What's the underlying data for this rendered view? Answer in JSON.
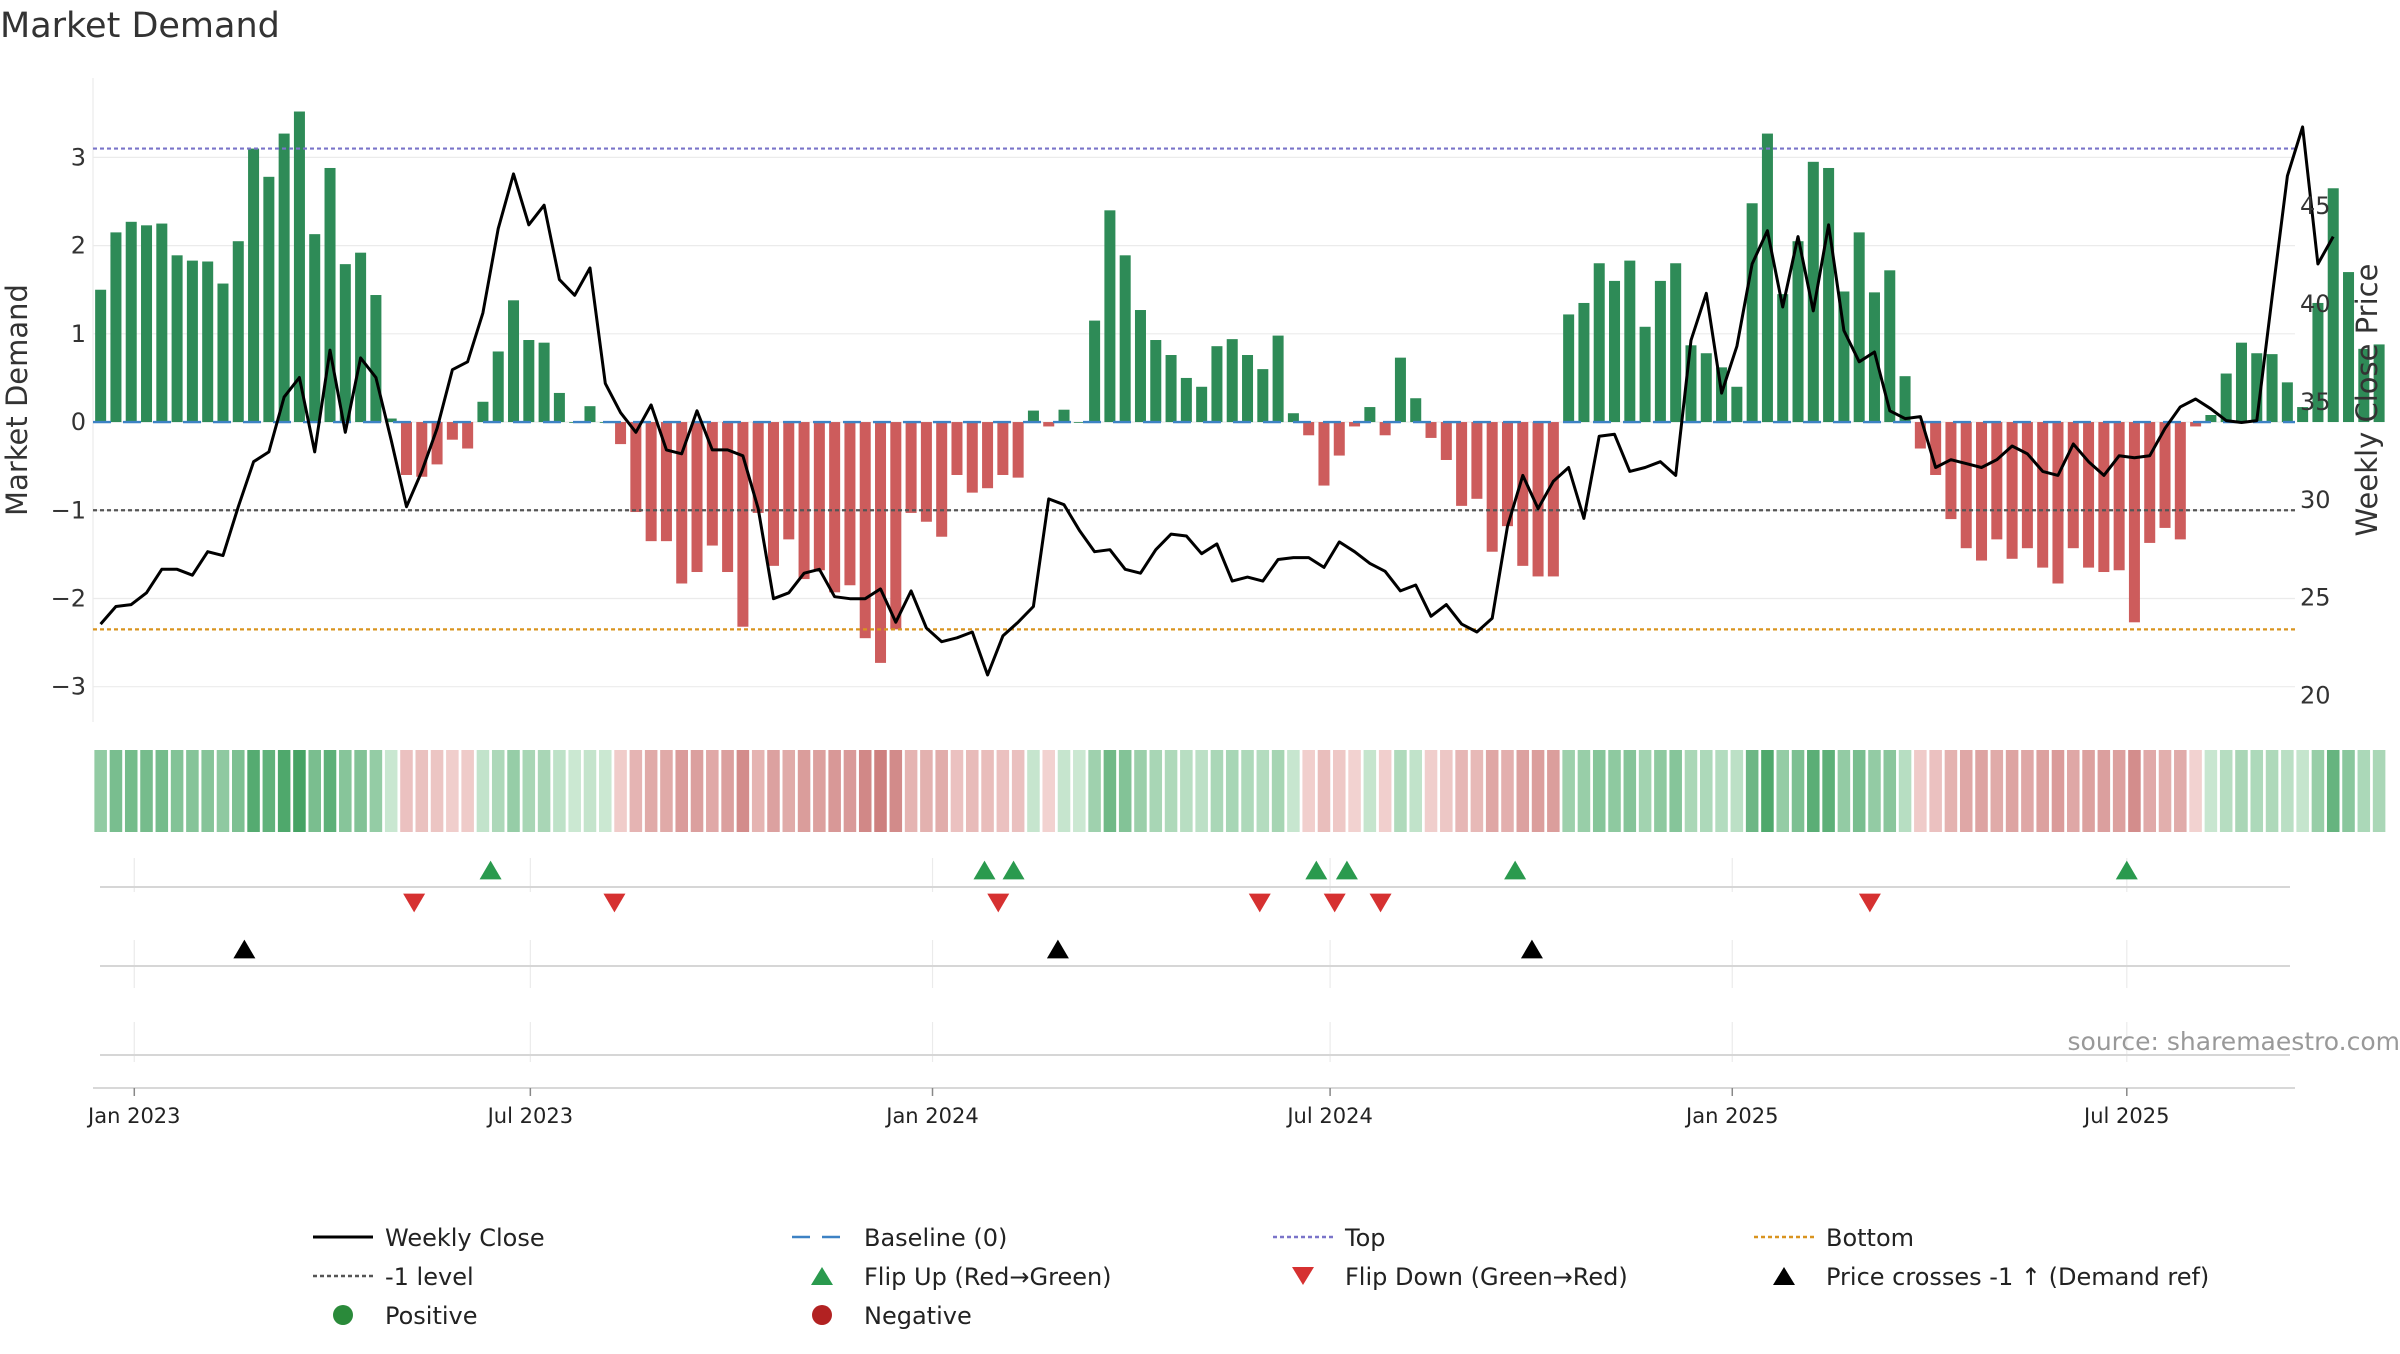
{
  "chart_data": {
    "type": "bar",
    "title": "Market Demand",
    "ylabel_left": "Market Demand",
    "ylabel_right": "Weekly Close Price",
    "ylim_left": [
      -3.4,
      3.9
    ],
    "ylim_right": [
      18.6,
      51.5
    ],
    "yticks_left": [
      {
        "v": 3,
        "label": "3"
      },
      {
        "v": 2,
        "label": "2"
      },
      {
        "v": 1,
        "label": "1"
      },
      {
        "v": 0,
        "label": "0"
      },
      {
        "v": -1,
        "label": "−1"
      },
      {
        "v": -2,
        "label": "−2"
      },
      {
        "v": -3,
        "label": "−3"
      }
    ],
    "yticks_right": [
      {
        "v": 45,
        "label": "45"
      },
      {
        "v": 40,
        "label": "40"
      },
      {
        "v": 35,
        "label": "35"
      },
      {
        "v": 30,
        "label": "30"
      },
      {
        "v": 25,
        "label": "25"
      },
      {
        "v": 20,
        "label": "20"
      }
    ],
    "x_start": "2022-12-19",
    "x_weeks": 144,
    "xticks": [
      {
        "week": 2.2,
        "label": "Jan 2023"
      },
      {
        "week": 28.1,
        "label": "Jul 2023"
      },
      {
        "week": 54.4,
        "label": "Jan 2024"
      },
      {
        "week": 80.4,
        "label": "Jul 2024"
      },
      {
        "week": 106.7,
        "label": "Jan 2025"
      },
      {
        "week": 132.5,
        "label": "Jul 2025"
      }
    ],
    "reference_lines": {
      "top": 3.1,
      "bottom": -2.35,
      "minus_one": -1,
      "baseline": 0
    },
    "market_demand": [
      1.5,
      2.15,
      2.27,
      2.23,
      2.25,
      1.89,
      1.83,
      1.82,
      1.57,
      2.05,
      3.1,
      2.78,
      3.27,
      3.52,
      2.13,
      2.88,
      1.79,
      1.92,
      1.44,
      0.04,
      -0.6,
      -0.62,
      -0.48,
      -0.2,
      -0.3,
      0.23,
      0.8,
      1.38,
      0.93,
      0.9,
      0.33,
      0,
      0.18,
      0,
      -0.25,
      -1.02,
      -1.35,
      -1.35,
      -1.83,
      -1.7,
      -1.4,
      -1.7,
      -2.32,
      -1.03,
      -1.63,
      -1.33,
      -1.78,
      -1.68,
      -1.93,
      -1.85,
      -2.45,
      -2.73,
      -2.35,
      -1.03,
      -1.13,
      -1.3,
      -0.6,
      -0.8,
      -0.75,
      -0.6,
      -0.63,
      0.13,
      -0.05,
      0.14,
      0,
      1.15,
      2.4,
      1.89,
      1.27,
      0.93,
      0.76,
      0.5,
      0.4,
      0.86,
      0.94,
      0.76,
      0.6,
      0.98,
      0.1,
      -0.15,
      -0.72,
      -0.38,
      -0.05,
      0.17,
      -0.15,
      0.73,
      0.27,
      -0.18,
      -0.43,
      -0.95,
      -0.87,
      -1.47,
      -1.18,
      -1.63,
      -1.75,
      -1.75,
      1.22,
      1.35,
      1.8,
      1.6,
      1.83,
      1.08,
      1.6,
      1.8,
      0.87,
      0.78,
      0.62,
      0.4,
      2.48,
      3.27,
      1.45,
      2.05,
      2.95,
      2.88,
      1.48,
      2.15,
      1.47,
      1.72,
      0.52,
      -0.3,
      -0.6,
      -1.1,
      -1.43,
      -1.57,
      -1.33,
      -1.55,
      -1.43,
      -1.65,
      -1.83,
      -1.43,
      -1.65,
      -1.7,
      -1.68,
      -2.27,
      -1.37,
      -1.2,
      -1.33,
      -0.05,
      0.08,
      0.55,
      0.9,
      0.78,
      0.77,
      0.45,
      0.17,
      1.35,
      2.65,
      1.7,
      0.83,
      0.88
    ],
    "weekly_close": [
      23.6,
      24.5,
      24.6,
      25.2,
      26.4,
      26.4,
      26.1,
      27.3,
      27.1,
      29.6,
      31.9,
      32.4,
      35.2,
      36.2,
      32.4,
      37.6,
      33.4,
      37.2,
      36.2,
      33.0,
      29.6,
      31.4,
      33.6,
      36.6,
      37.0,
      39.5,
      43.8,
      46.6,
      44.0,
      45.0,
      41.2,
      40.4,
      41.8,
      35.9,
      34.4,
      33.4,
      34.8,
      32.5,
      32.3,
      34.5,
      32.5,
      32.5,
      32.2,
      29.5,
      24.9,
      25.2,
      26.2,
      26.4,
      25.0,
      24.9,
      24.9,
      25.4,
      23.7,
      25.3,
      23.4,
      22.7,
      22.9,
      23.2,
      21.0,
      23.0,
      23.7,
      24.5,
      30.0,
      29.7,
      28.4,
      27.3,
      27.4,
      26.4,
      26.2,
      27.4,
      28.2,
      28.1,
      27.2,
      27.7,
      25.8,
      26.0,
      25.8,
      26.9,
      27.0,
      27.0,
      26.5,
      27.8,
      27.3,
      26.7,
      26.3,
      25.3,
      25.6,
      24.0,
      24.6,
      23.6,
      23.2,
      23.9,
      28.6,
      31.2,
      29.5,
      30.9,
      31.6,
      29.0,
      33.2,
      33.3,
      31.4,
      31.6,
      31.9,
      31.2,
      38.1,
      40.5,
      35.4,
      37.8,
      42.0,
      43.7,
      39.8,
      43.4,
      39.6,
      44.0,
      38.6,
      37.0,
      37.5,
      34.5,
      34.1,
      34.2,
      31.6,
      32.0,
      31.8,
      31.6,
      32.0,
      32.7,
      32.3,
      31.4,
      31.2,
      32.8,
      31.9,
      31.2,
      32.2,
      32.1,
      32.2,
      33.6,
      34.7,
      35.1,
      34.6,
      34.0,
      33.9,
      34.0,
      40.3,
      46.5,
      49.0,
      42.0,
      43.4
    ],
    "color_strip_palette": {
      "pos_light": "#cbe8d2",
      "pos_dark": "#45a364",
      "neg_light": "#f3d4d2",
      "neg_dark": "#cd7f7e"
    },
    "flip_up_weeks": [
      25.5,
      57.8,
      59.7,
      79.5,
      81.5,
      92.5,
      132.5
    ],
    "flip_down_weeks": [
      20.5,
      33.6,
      58.7,
      75.8,
      80.7,
      83.7,
      115.7
    ],
    "price_cross_weeks": [
      9.4,
      62.6,
      93.6
    ],
    "source": "source: sharemaestro.com",
    "legend": [
      {
        "key": "close",
        "label": "Weekly Close",
        "icon": "solid-line-icon",
        "color": "#000000"
      },
      {
        "key": "baseline",
        "label": "Baseline (0)",
        "icon": "dashed-line-icon",
        "color": "#3d82c4"
      },
      {
        "key": "top",
        "label": "Top",
        "icon": "dotted-line-icon",
        "color": "#7a74c9"
      },
      {
        "key": "bottom",
        "label": "Bottom",
        "icon": "dotted-line-icon",
        "color": "#d9941f"
      },
      {
        "key": "minus_one",
        "label": "-1 level",
        "icon": "dotted-line-icon",
        "color": "#555555"
      },
      {
        "key": "flip_up",
        "label": "Flip Up (Red→Green)",
        "icon": "triangle-up-icon",
        "color": "#2a9a4e"
      },
      {
        "key": "flip_down",
        "label": "Flip Down (Green→Red)",
        "icon": "triangle-down-icon",
        "color": "#d63131"
      },
      {
        "key": "price_cross",
        "label": "Price crosses -1 ↑ (Demand ref)",
        "icon": "triangle-up-icon",
        "color": "#000000"
      },
      {
        "key": "positive",
        "label": "Positive",
        "icon": "dot-icon",
        "color": "#2a8a3a"
      },
      {
        "key": "negative",
        "label": "Negative",
        "icon": "dot-icon",
        "color": "#b22222"
      }
    ],
    "colors": {
      "positive_bar": "#2e8b57",
      "negative_bar": "#cd5c5c",
      "close_line": "#000000",
      "baseline": "#3d82c4",
      "top": "#7a74c9",
      "bottom": "#d9941f",
      "minus_one": "#555555",
      "flip_up": "#2a9a4e",
      "flip_down": "#d63131",
      "price_cross": "#000000",
      "grid": "#ebebeb",
      "axis": "#d8d8d8"
    }
  }
}
